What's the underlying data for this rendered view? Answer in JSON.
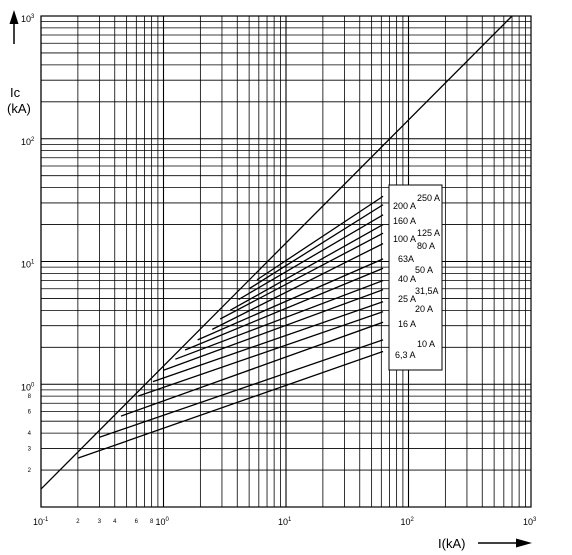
{
  "chart_data": {
    "type": "line",
    "xscale": "log",
    "yscale": "log",
    "xlim": [
      0.1,
      1000
    ],
    "ylim": [
      0.1,
      1000
    ],
    "xlabel": "I(kA)",
    "ylabel": [
      "Ic",
      "(kA)"
    ],
    "grid": true,
    "x_tick_labels": [
      {
        "x": 0.1,
        "base": "10",
        "exp": "-1"
      },
      {
        "x": 1,
        "base": "10",
        "exp": "0"
      },
      {
        "x": 10,
        "base": "10",
        "exp": "1"
      },
      {
        "x": 100,
        "base": "10",
        "exp": "2"
      },
      {
        "x": 1000,
        "base": "10",
        "exp": "3"
      }
    ],
    "x_minor_labels": [
      {
        "x": 0.2,
        "label": "2"
      },
      {
        "x": 0.3,
        "label": "3"
      },
      {
        "x": 0.4,
        "label": "4"
      },
      {
        "x": 0.6,
        "label": "6"
      },
      {
        "x": 0.8,
        "label": "8"
      }
    ],
    "y_tick_labels": [
      {
        "y": 1,
        "base": "10",
        "exp": "0"
      },
      {
        "y": 10,
        "base": "10",
        "exp": "1"
      },
      {
        "y": 100,
        "base": "10",
        "exp": "2"
      },
      {
        "y": 1000,
        "base": "10",
        "exp": "3"
      }
    ],
    "y_minor_labels": [
      {
        "y": 0.2,
        "label": "2"
      },
      {
        "y": 0.3,
        "label": "3"
      },
      {
        "y": 0.4,
        "label": "4"
      },
      {
        "y": 0.6,
        "label": "6"
      },
      {
        "y": 0.8,
        "label": "8"
      }
    ],
    "envelope": {
      "x": [
        0.1,
        700
      ],
      "y": [
        0.14,
        1000
      ]
    },
    "series": [
      {
        "name": "250 A",
        "x": [
          5.8,
          62
        ],
        "y": [
          7.1,
          34
        ]
      },
      {
        "name": "200 A",
        "x": [
          5.0,
          62
        ],
        "y": [
          6.0,
          29
        ]
      },
      {
        "name": "160 A",
        "x": [
          4.1,
          62
        ],
        "y": [
          4.9,
          24
        ]
      },
      {
        "name": "125 A",
        "x": [
          3.5,
          62
        ],
        "y": [
          4.0,
          20
        ]
      },
      {
        "name": "100 A",
        "x": [
          2.9,
          62
        ],
        "y": [
          3.4,
          17
        ]
      },
      {
        "name": "80 A",
        "x": [
          2.5,
          62
        ],
        "y": [
          2.8,
          14
        ]
      },
      {
        "name": "63A",
        "x": [
          1.9,
          62
        ],
        "y": [
          2.3,
          10.5
        ]
      },
      {
        "name": "50 A",
        "x": [
          1.5,
          62
        ],
        "y": [
          1.9,
          8.8
        ]
      },
      {
        "name": "40 A",
        "x": [
          1.25,
          62
        ],
        "y": [
          1.6,
          7.0
        ]
      },
      {
        "name": "31,5A",
        "x": [
          1.0,
          62
        ],
        "y": [
          1.3,
          5.9
        ]
      },
      {
        "name": "25 A",
        "x": [
          0.82,
          62
        ],
        "y": [
          1.05,
          4.7
        ]
      },
      {
        "name": "20 A",
        "x": [
          0.62,
          62
        ],
        "y": [
          0.8,
          3.9
        ]
      },
      {
        "name": "16 A",
        "x": [
          0.45,
          62
        ],
        "y": [
          0.55,
          3.2
        ]
      },
      {
        "name": "10 A",
        "x": [
          0.3,
          62
        ],
        "y": [
          0.37,
          2.3
        ]
      },
      {
        "name": "6,3 A",
        "x": [
          0.2,
          62
        ],
        "y": [
          0.25,
          1.85
        ]
      }
    ]
  }
}
